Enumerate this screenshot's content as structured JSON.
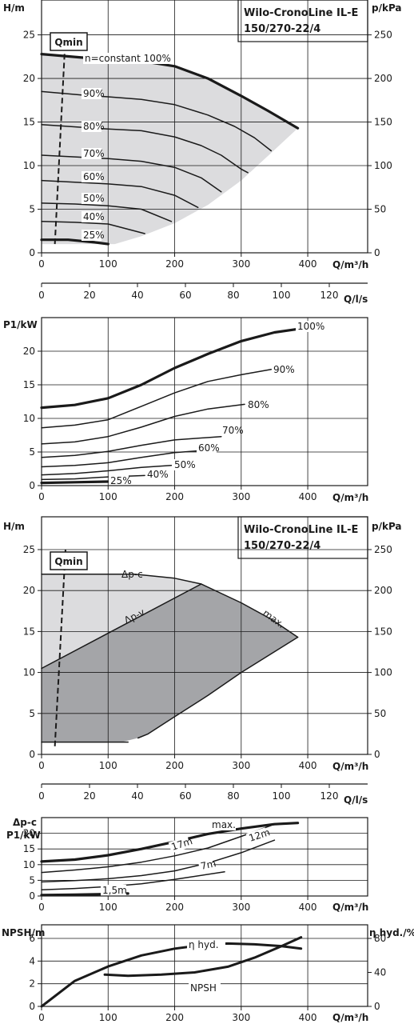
{
  "panel_1": {
    "title_line1": "Wilo-CronoLine IL-E",
    "title_line2": "150/270-22/4",
    "y_left_label": "H/m",
    "y_right_label": "p/kPa",
    "x_label": "Q/m³/h",
    "qmin_label": "Qmin",
    "x_ticks": [
      "0",
      "100",
      "200",
      "300",
      "400"
    ],
    "y_left_ticks": [
      "0",
      "5",
      "10",
      "15",
      "20",
      "25"
    ],
    "y_right_ticks": [
      "0",
      "50",
      "100",
      "150",
      "200",
      "250"
    ]
  },
  "ls_axis_1": {
    "label": "Q/l/s",
    "ticks": [
      "0",
      "20",
      "40",
      "60",
      "80",
      "100",
      "120"
    ]
  },
  "panel_2": {
    "y_label": "P1/kW",
    "x_label": "Q/m³/h",
    "x_ticks": [
      "0",
      "100",
      "200",
      "300",
      "400"
    ],
    "y_ticks": [
      "0",
      "5",
      "10",
      "15",
      "20"
    ]
  },
  "panel_3": {
    "title_line1": "Wilo-CronoLine IL-E",
    "title_line2": "150/270-22/4",
    "y_left_label": "H/m",
    "y_right_label": "p/kPa",
    "x_label": "Q/m³/h",
    "qmin_label": "Qmin",
    "x_ticks": [
      "0",
      "100",
      "200",
      "300",
      "400"
    ],
    "y_left_ticks": [
      "0",
      "5",
      "10",
      "15",
      "20",
      "25"
    ],
    "y_right_ticks": [
      "0",
      "50",
      "100",
      "150",
      "200",
      "250"
    ]
  },
  "ls_axis_2": {
    "label": "Q/l/s",
    "ticks": [
      "0",
      "20",
      "40",
      "60",
      "80",
      "100",
      "120"
    ]
  },
  "panel_4": {
    "y_label_top": "Δp-c",
    "y_label_bottom": "P1/kW",
    "x_label": "Q/m³/h",
    "x_ticks": [
      "0",
      "100",
      "200",
      "300",
      "400"
    ],
    "y_ticks": [
      "0",
      "5",
      "10",
      "15",
      "20"
    ]
  },
  "panel_5": {
    "y_left_label": "NPSH/m",
    "y_right_label": "η hyd./%",
    "x_label": "Q/m³/h",
    "x_ticks": [
      "0",
      "100",
      "200",
      "300",
      "400"
    ],
    "y_left_ticks": [
      "0",
      "2",
      "4",
      "6"
    ],
    "y_right_ticks": [
      "0",
      "40",
      "80"
    ]
  },
  "colors": {
    "line": "#1a1a1a",
    "light_fill": "#dcdcde",
    "dark_fill": "#a4a5a8"
  },
  "chart_data": [
    {
      "type": "line",
      "title": "Wilo-CronoLine IL-E 150/270-22/4",
      "xlabel": "Q/m³/h",
      "ylabel": "H/m",
      "y2label": "p/kPa",
      "xlim": [
        0,
        490
      ],
      "ylim": [
        0,
        29
      ],
      "y2lim": [
        0,
        290
      ],
      "grid": true,
      "qmin": [
        [
          20,
          1
        ],
        [
          36,
          25
        ]
      ],
      "operating_range": [
        [
          0,
          22.8
        ],
        [
          60,
          22.4
        ],
        [
          100,
          22.2
        ],
        [
          150,
          22.0
        ],
        [
          200,
          21.4
        ],
        [
          250,
          20.0
        ],
        [
          300,
          18.0
        ],
        [
          340,
          16.3
        ],
        [
          385,
          14.3
        ],
        [
          350,
          11.8
        ],
        [
          300,
          8.3
        ],
        [
          250,
          5.5
        ],
        [
          200,
          3.4
        ],
        [
          150,
          1.9
        ],
        [
          110,
          1.0
        ],
        [
          100,
          1.0
        ],
        [
          0,
          1.0
        ]
      ],
      "series": [
        {
          "name": "n=constant 100%",
          "label": "n=constant 100%",
          "bold": true,
          "x": [
            0,
            60,
            100,
            150,
            200,
            250,
            300,
            340,
            385
          ],
          "y": [
            22.8,
            22.4,
            22.2,
            22.0,
            21.4,
            20.0,
            18.0,
            16.3,
            14.3
          ]
        },
        {
          "name": "90%",
          "label": "90%",
          "x": [
            0,
            60,
            100,
            150,
            200,
            250,
            290,
            320,
            345
          ],
          "y": [
            18.5,
            18.1,
            17.9,
            17.6,
            17.0,
            15.8,
            14.5,
            13.2,
            11.7
          ]
        },
        {
          "name": "80%",
          "label": "80%",
          "x": [
            0,
            60,
            100,
            150,
            200,
            240,
            270,
            300,
            310
          ],
          "y": [
            14.7,
            14.4,
            14.2,
            14.0,
            13.3,
            12.3,
            11.2,
            9.6,
            9.2
          ]
        },
        {
          "name": "70%",
          "label": "70%",
          "x": [
            0,
            50,
            100,
            150,
            200,
            240,
            270
          ],
          "y": [
            11.2,
            11.0,
            10.8,
            10.5,
            9.8,
            8.6,
            7.0
          ]
        },
        {
          "name": "60%",
          "label": "60%",
          "x": [
            0,
            50,
            100,
            150,
            200,
            235
          ],
          "y": [
            8.3,
            8.1,
            7.9,
            7.6,
            6.6,
            5.2
          ]
        },
        {
          "name": "50%",
          "label": "50%",
          "x": [
            0,
            50,
            100,
            150,
            195
          ],
          "y": [
            5.7,
            5.6,
            5.4,
            5.0,
            3.6
          ]
        },
        {
          "name": "40%",
          "label": "40%",
          "x": [
            0,
            50,
            100,
            155
          ],
          "y": [
            3.6,
            3.5,
            3.3,
            2.2
          ]
        },
        {
          "name": "25%",
          "label": "25%",
          "bold": true,
          "x": [
            0,
            40,
            80,
            100
          ],
          "y": [
            1.5,
            1.5,
            1.2,
            1.0
          ]
        }
      ]
    },
    {
      "type": "axis",
      "xlabel": "Q/l/s",
      "xlim": [
        0,
        136
      ],
      "ticks": [
        0,
        20,
        40,
        60,
        80,
        100,
        120
      ]
    },
    {
      "type": "line",
      "xlabel": "Q/m³/h",
      "ylabel": "P1/kW",
      "xlim": [
        0,
        490
      ],
      "ylim": [
        0,
        25
      ],
      "grid": true,
      "series": [
        {
          "name": "100%",
          "label": "100%",
          "bold": true,
          "x": [
            0,
            50,
            100,
            150,
            200,
            250,
            300,
            350,
            385
          ],
          "y": [
            11.6,
            12.0,
            13.0,
            15.0,
            17.5,
            19.6,
            21.5,
            22.8,
            23.3
          ]
        },
        {
          "name": "90%",
          "label": "90%",
          "x": [
            0,
            50,
            100,
            150,
            200,
            250,
            300,
            345
          ],
          "y": [
            8.6,
            9.0,
            9.8,
            11.8,
            13.8,
            15.5,
            16.5,
            17.3
          ]
        },
        {
          "name": "80%",
          "label": "80%",
          "x": [
            0,
            50,
            100,
            150,
            200,
            250,
            305
          ],
          "y": [
            6.2,
            6.5,
            7.3,
            8.7,
            10.3,
            11.4,
            12.1
          ]
        },
        {
          "name": "70%",
          "label": "70%",
          "x": [
            0,
            50,
            100,
            150,
            200,
            270
          ],
          "y": [
            4.2,
            4.5,
            5.1,
            6.0,
            6.8,
            7.3
          ]
        },
        {
          "name": "60%",
          "label": "60%",
          "x": [
            0,
            50,
            100,
            150,
            200,
            240
          ],
          "y": [
            2.8,
            3.0,
            3.4,
            4.2,
            4.9,
            5.2
          ]
        },
        {
          "name": "50%",
          "label": "50%",
          "x": [
            0,
            50,
            100,
            150,
            195
          ],
          "y": [
            1.6,
            1.8,
            2.2,
            2.7,
            3.0
          ]
        },
        {
          "name": "40%",
          "label": "40%",
          "x": [
            0,
            50,
            100,
            155
          ],
          "y": [
            0.9,
            1.0,
            1.3,
            1.5
          ]
        },
        {
          "name": "25%",
          "label": "25%",
          "bold": true,
          "x": [
            0,
            50,
            100
          ],
          "y": [
            0.4,
            0.5,
            0.6
          ]
        }
      ]
    },
    {
      "type": "area",
      "title": "Wilo-CronoLine IL-E 150/270-22/4",
      "xlabel": "Q/m³/h",
      "ylabel": "H/m",
      "y2label": "p/kPa",
      "xlim": [
        0,
        490
      ],
      "ylim": [
        0,
        29
      ],
      "y2lim": [
        0,
        290
      ],
      "grid": true,
      "qmin": [
        [
          20,
          1
        ],
        [
          36,
          25
        ]
      ],
      "delta_p_c_region": [
        [
          0,
          22
        ],
        [
          140,
          22
        ],
        [
          200,
          21.5
        ],
        [
          240,
          20.8
        ],
        [
          0,
          10.5
        ]
      ],
      "delta_p_v_region": [
        [
          0,
          10.5
        ],
        [
          240,
          20.8
        ],
        [
          300,
          18.5
        ],
        [
          345,
          16.5
        ],
        [
          385,
          14.3
        ],
        [
          300,
          10.0
        ],
        [
          250,
          7.2
        ],
        [
          200,
          4.6
        ],
        [
          160,
          2.5
        ],
        [
          145,
          2.0
        ],
        [
          120,
          1.5
        ],
        [
          0,
          1.5
        ]
      ],
      "series": [
        {
          "name": "Δp-c",
          "label": "Δp-c",
          "x": [
            0,
            140,
            200,
            240
          ],
          "y": [
            22,
            22,
            21.5,
            20.8
          ]
        },
        {
          "name": "Δp-v",
          "label": "Δp-v",
          "x": [
            0,
            240
          ],
          "y": [
            10.5,
            20.8
          ]
        },
        {
          "name": "max.",
          "label": "max.",
          "x": [
            240,
            300,
            345,
            385
          ],
          "y": [
            20.8,
            18.5,
            16.5,
            14.3
          ]
        },
        {
          "name": "",
          "x": [
            385,
            300,
            250,
            200,
            160,
            145
          ],
          "y": [
            14.3,
            10.0,
            7.2,
            4.6,
            2.5,
            2.0
          ]
        },
        {
          "name": "",
          "x": [
            0,
            130
          ],
          "y": [
            1.5,
            1.5
          ]
        }
      ]
    },
    {
      "type": "axis",
      "xlabel": "Q/l/s",
      "xlim": [
        0,
        136
      ],
      "ticks": [
        0,
        20,
        40,
        60,
        80,
        100,
        120
      ]
    },
    {
      "type": "line",
      "xlabel": "Q/m³/h",
      "ylabel": "P1/kW",
      "xlim": [
        0,
        490
      ],
      "ylim": [
        0,
        25
      ],
      "grid": true,
      "series": [
        {
          "name": "max.",
          "label": "max.",
          "bold": true,
          "x": [
            0,
            50,
            100,
            150,
            200,
            250,
            300,
            350,
            385
          ],
          "y": [
            11.0,
            11.6,
            13.0,
            15.0,
            17.3,
            19.8,
            21.5,
            22.9,
            23.3
          ]
        },
        {
          "name": "17m",
          "label": "17m",
          "x": [
            0,
            50,
            100,
            150,
            200,
            250,
            300,
            345
          ],
          "y": [
            7.5,
            8.3,
            9.3,
            10.8,
            12.8,
            15.3,
            19.0,
            22.5
          ]
        },
        {
          "name": "12m",
          "label": "12m",
          "x": [
            0,
            50,
            100,
            150,
            200,
            250,
            300,
            350
          ],
          "y": [
            4.5,
            4.9,
            5.5,
            6.5,
            8.0,
            10.5,
            13.8,
            17.8
          ]
        },
        {
          "name": "7m",
          "label": "7m",
          "x": [
            0,
            50,
            100,
            150,
            200,
            275
          ],
          "y": [
            2.0,
            2.4,
            3.0,
            3.9,
            5.3,
            7.7
          ]
        },
        {
          "name": "1,5m",
          "label": "1,5m",
          "bold": true,
          "x": [
            0,
            50,
            100,
            130
          ],
          "y": [
            0.3,
            0.4,
            0.6,
            0.8
          ]
        }
      ]
    },
    {
      "type": "line",
      "xlabel": "Q/m³/h",
      "ylabel": "NPSH/m",
      "y2label": "η hyd./%",
      "xlim": [
        0,
        490
      ],
      "ylim": [
        0,
        7.2
      ],
      "y2lim": [
        0,
        96
      ],
      "grid": true,
      "series": [
        {
          "name": "η hyd.",
          "label": "η hyd.",
          "axis": "right",
          "x": [
            0,
            50,
            100,
            150,
            200,
            250,
            280,
            320,
            360,
            390
          ],
          "y": [
            0,
            30,
            47,
            60,
            68,
            73,
            74,
            73,
            71,
            68
          ]
        },
        {
          "name": "NPSH",
          "label": "NPSH",
          "axis": "left",
          "x": [
            95,
            130,
            180,
            230,
            280,
            320,
            360,
            390
          ],
          "y": [
            2.8,
            2.7,
            2.8,
            3.0,
            3.5,
            4.3,
            5.3,
            6.1
          ]
        }
      ]
    }
  ]
}
